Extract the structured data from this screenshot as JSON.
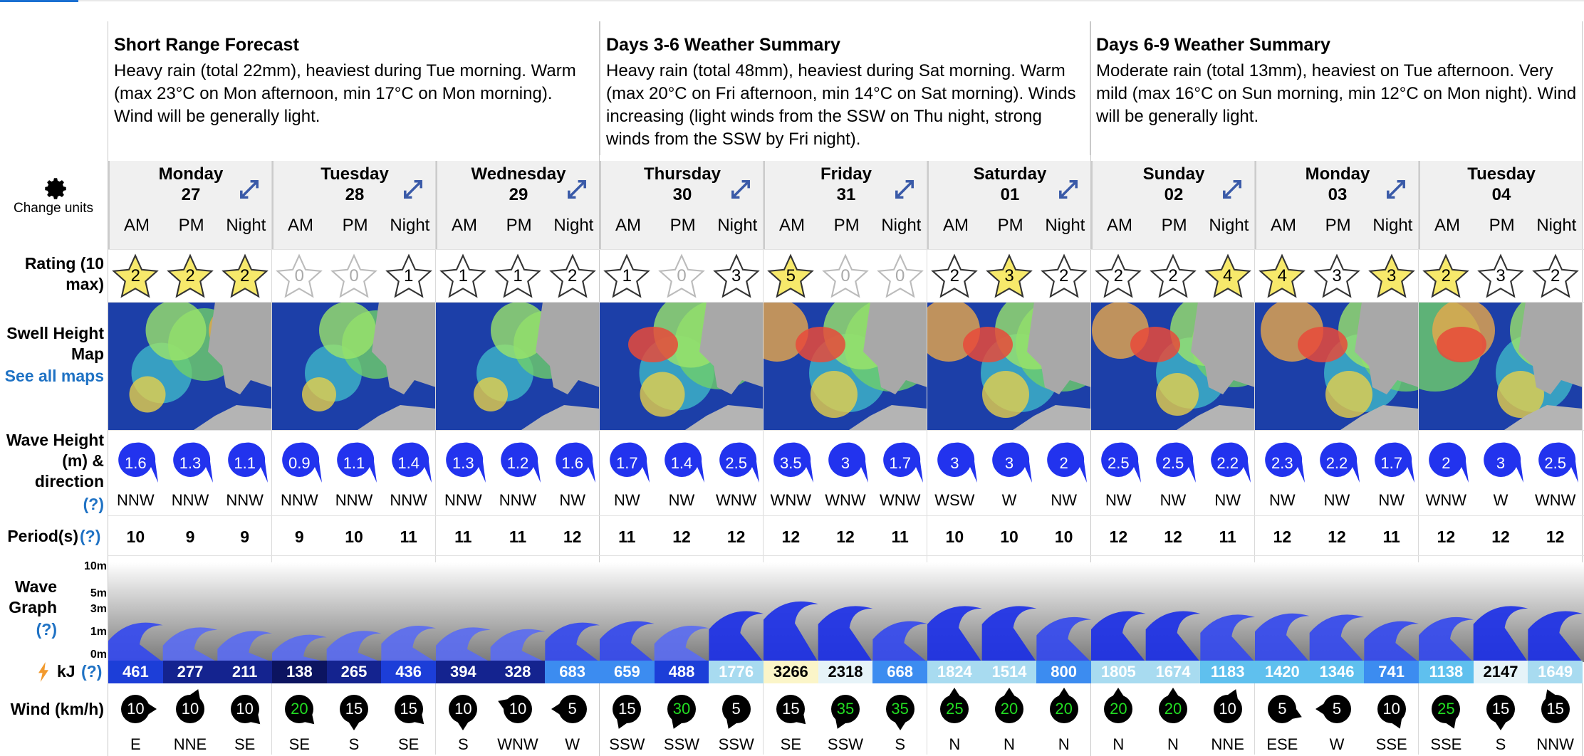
{
  "summaries": [
    {
      "title": "Short Range Forecast",
      "text": "Heavy rain (total 22mm), heaviest during Tue morning. Warm (max 23°C on Mon afternoon, min 17°C on Mon morning). Wind will be generally light."
    },
    {
      "title": "Days 3-6 Weather Summary",
      "text": "Heavy rain (total 48mm), heaviest during Sat morning. Warm (max 20°C on Fri afternoon, min 14°C on Sat morning). Winds increasing (light winds from the SSW on Thu night, strong winds from the SSW by Fri night)."
    },
    {
      "title": "Days 6-9 Weather Summary",
      "text": "Moderate rain (total 13mm), heaviest on Tue afternoon. Very mild (max 16°C on Sun morning, min 12°C on Mon night). Wind will be generally light."
    }
  ],
  "labels": {
    "change_units": "Change units",
    "rating": "Rating (10 max)",
    "swell_map": "Swell Height Map",
    "see_all": "See all maps",
    "wave_height": "Wave Height (m) & direction",
    "help": "(?)",
    "period": "Period(s)",
    "wave_graph": "Wave Graph",
    "kj": "kJ",
    "wind": "Wind (km/h)"
  },
  "scale": [
    "10m",
    "5m",
    "3m",
    "1m",
    "0m"
  ],
  "periods": [
    "AM",
    "PM",
    "Night"
  ],
  "days": [
    {
      "name": "Monday",
      "num": "27"
    },
    {
      "name": "Tuesday",
      "num": "28"
    },
    {
      "name": "Wednesday",
      "num": "29"
    },
    {
      "name": "Thursday",
      "num": "30"
    },
    {
      "name": "Friday",
      "num": "31"
    },
    {
      "name": "Saturday",
      "num": "01"
    },
    {
      "name": "Sunday",
      "num": "02"
    },
    {
      "name": "Monday",
      "num": "03"
    },
    {
      "name": "Tuesday",
      "num": "04"
    }
  ],
  "ratings": [
    "2",
    "2",
    "2",
    "0",
    "0",
    "1",
    "1",
    "1",
    "2",
    "1",
    "0",
    "3",
    "5",
    "0",
    "0",
    "2",
    "3",
    "2",
    "2",
    "2",
    "4",
    "4",
    "3",
    "3",
    "2",
    "3",
    "2"
  ],
  "wave_heights": [
    "1.6",
    "1.3",
    "1.1",
    "0.9",
    "1.1",
    "1.4",
    "1.3",
    "1.2",
    "1.6",
    "1.7",
    "1.4",
    "2.5",
    "3.5",
    "3",
    "1.7",
    "3",
    "3",
    "2",
    "2.5",
    "2.5",
    "2.2",
    "2.3",
    "2.2",
    "1.7",
    "2",
    "3",
    "2.5"
  ],
  "wave_dirs": [
    "NNW",
    "NNW",
    "NNW",
    "NNW",
    "NNW",
    "NNW",
    "NNW",
    "NNW",
    "NW",
    "NW",
    "NW",
    "WNW",
    "WNW",
    "WNW",
    "WNW",
    "WSW",
    "W",
    "NW",
    "NW",
    "NW",
    "NW",
    "NW",
    "NW",
    "NW",
    "WNW",
    "W",
    "WNW"
  ],
  "periods_s": [
    "10",
    "9",
    "9",
    "9",
    "10",
    "11",
    "11",
    "11",
    "12",
    "11",
    "12",
    "12",
    "12",
    "12",
    "11",
    "10",
    "10",
    "10",
    "12",
    "12",
    "11",
    "12",
    "12",
    "11",
    "12",
    "12",
    "12"
  ],
  "energy": [
    "461",
    "277",
    "211",
    "138",
    "265",
    "436",
    "394",
    "328",
    "683",
    "659",
    "488",
    "1776",
    "3266",
    "2318",
    "668",
    "1824",
    "1514",
    "800",
    "1805",
    "1674",
    "1183",
    "1420",
    "1346",
    "741",
    "1138",
    "2147",
    "1649"
  ],
  "wind_speeds": [
    "10",
    "10",
    "10",
    "20",
    "15",
    "15",
    "10",
    "10",
    "5",
    "15",
    "30",
    "5",
    "15",
    "35",
    "35",
    "25",
    "20",
    "20",
    "20",
    "20",
    "10",
    "5",
    "5",
    "10",
    "25",
    "15",
    "15"
  ],
  "wind_dirs": [
    "E",
    "NNE",
    "SE",
    "SE",
    "S",
    "SE",
    "S",
    "WNW",
    "W",
    "SSW",
    "SSW",
    "SSW",
    "SE",
    "SSW",
    "S",
    "N",
    "N",
    "N",
    "N",
    "N",
    "NNE",
    "ESE",
    "W",
    "SSE",
    "SSE",
    "S",
    "NNW"
  ],
  "colors": {
    "star_fill": "#f7e96b",
    "wave_blue": "#2233ee",
    "help_blue": "#1f72c4",
    "wind_green": "#22dd22"
  }
}
